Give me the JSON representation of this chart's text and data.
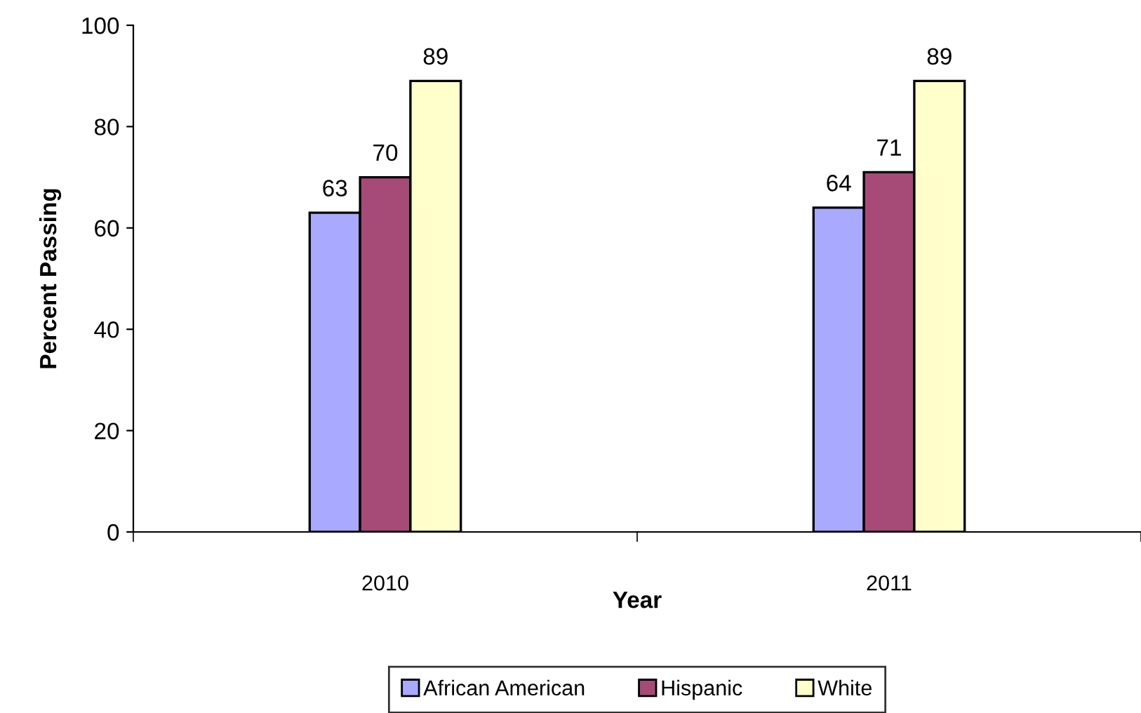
{
  "chart_data": {
    "type": "bar",
    "xlabel": "Year",
    "ylabel": "Percent Passing",
    "categories": [
      "2010",
      "2011"
    ],
    "series": [
      {
        "name": "African American",
        "color": "#a9a9ff",
        "values": [
          63,
          64
        ]
      },
      {
        "name": "Hispanic",
        "color": "#a64a78",
        "values": [
          70,
          71
        ]
      },
      {
        "name": "White",
        "color": "#ffffcc",
        "values": [
          89,
          89
        ]
      }
    ],
    "ylim": [
      0,
      100
    ],
    "yticks": [
      0,
      20,
      40,
      60,
      80,
      100
    ],
    "data_labels": true,
    "grid": false,
    "legend": "bottom"
  }
}
